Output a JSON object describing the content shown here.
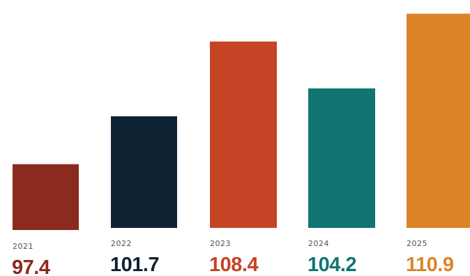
{
  "chart_data": {
    "type": "bar",
    "title": "",
    "xlabel": "",
    "ylabel": "",
    "categories": [
      "2021",
      "2022",
      "2023",
      "2024",
      "2025"
    ],
    "values": [
      97.4,
      101.7,
      108.4,
      104.2,
      110.9
    ],
    "value_labels": [
      "97.4",
      "101.7",
      "108.4",
      "104.2",
      "110.9"
    ],
    "colors": [
      "#8b2a1f",
      "#0f2233",
      "#c54426",
      "#107572",
      "#dd8428"
    ],
    "ylim": [
      91.5,
      111.5
    ],
    "grid": false,
    "legend": "none"
  }
}
